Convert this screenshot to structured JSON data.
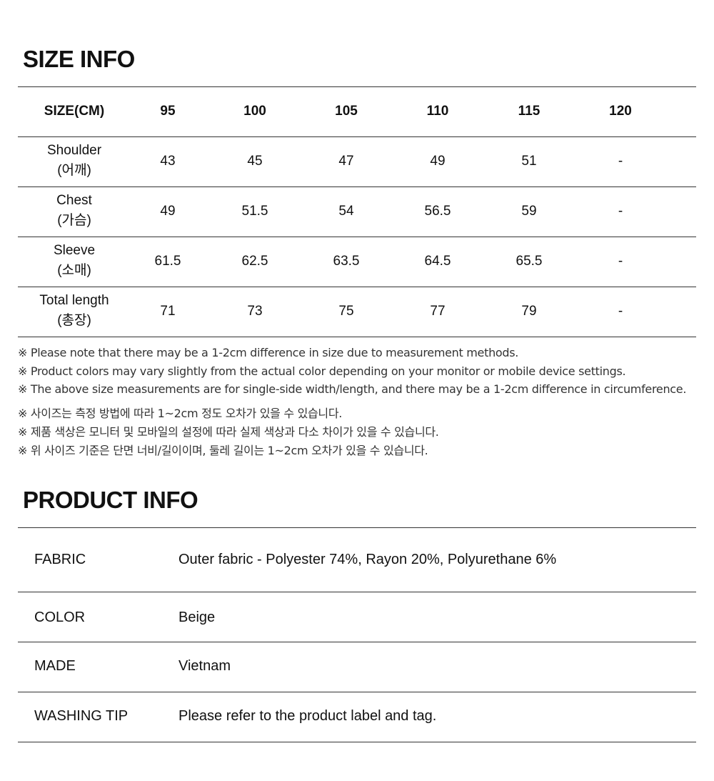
{
  "size_info": {
    "title": "SIZE INFO",
    "headers": [
      "SIZE(CM)",
      "95",
      "100",
      "105",
      "110",
      "115",
      "120"
    ],
    "rows": [
      {
        "label": "Shoulder",
        "label_ko": "(어깨)",
        "values": [
          "43",
          "45",
          "47",
          "49",
          "51",
          "-"
        ]
      },
      {
        "label": "Chest",
        "label_ko": "(가슴)",
        "values": [
          "49",
          "51.5",
          "54",
          "56.5",
          "59",
          "-"
        ]
      },
      {
        "label": "Sleeve",
        "label_ko": "(소매)",
        "values": [
          "61.5",
          "62.5",
          "63.5",
          "64.5",
          "65.5",
          "-"
        ]
      },
      {
        "label": "Total length",
        "label_ko": "(총장)",
        "values": [
          "71",
          "73",
          "75",
          "77",
          "79",
          "-"
        ]
      }
    ],
    "notes": [
      "※ Please note that there may be a 1-2cm difference in size due to measurement methods.",
      "※ Product colors may vary slightly from the actual color depending on your monitor or mobile device settings.",
      "※ The above size measurements are for single-side width/length, and there may be a 1-2cm difference in circumference.",
      "※ 사이즈는 측정 방법에 따라 1~2cm 정도 오차가 있을 수 있습니다.",
      "※ 제품 색상은 모니터 및 모바일의 설정에 따라 실제 색상과 다소 차이가 있을 수 있습니다.",
      "※ 위 사이즈 기준은 단면 너비/길이이며, 둘레 길이는 1~2cm 오차가 있을 수 있습니다."
    ]
  },
  "product_info": {
    "title": "PRODUCT INFO",
    "rows": [
      {
        "label": "FABRIC",
        "value": "Outer fabric - Polyester 74%, Rayon 20%, Polyurethane 6%"
      },
      {
        "label": "COLOR",
        "value": "Beige"
      },
      {
        "label": "MADE",
        "value": "Vietnam"
      },
      {
        "label": "WASHING TIP",
        "value": "Please refer to the product label and tag."
      }
    ]
  }
}
